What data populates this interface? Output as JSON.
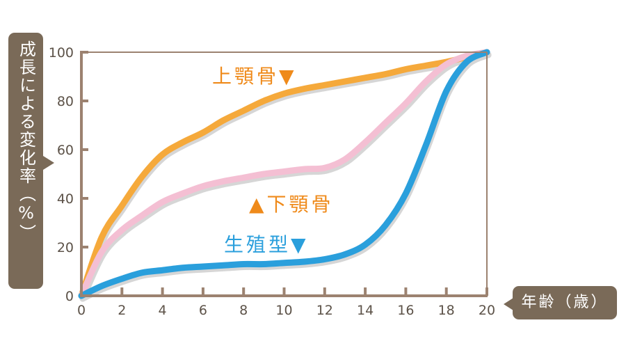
{
  "chart_data": {
    "type": "line",
    "title": "",
    "xlabel": "年齢（歳）",
    "ylabel": "成長による変化率（%）",
    "xlim": [
      0,
      20
    ],
    "ylim": [
      0,
      100
    ],
    "x_ticks": [
      0,
      2,
      4,
      6,
      8,
      10,
      12,
      14,
      16,
      18,
      20
    ],
    "y_ticks": [
      0,
      20,
      40,
      60,
      80,
      100
    ],
    "grid": false,
    "x": [
      0,
      1,
      2,
      3,
      4,
      5,
      6,
      7,
      8,
      9,
      10,
      11,
      12,
      13,
      14,
      15,
      16,
      17,
      18,
      19,
      20
    ],
    "series": [
      {
        "name": "上顎骨",
        "label": "上顎骨▼",
        "color": "#f5a93b",
        "values": [
          0,
          24,
          37,
          49,
          58,
          63,
          67,
          72,
          76,
          80,
          83,
          85,
          86.5,
          88,
          89.5,
          91,
          93,
          94.5,
          96,
          98,
          100
        ]
      },
      {
        "name": "下顎骨",
        "label": "▲下顎骨",
        "color": "#f4bfd3",
        "values": [
          0,
          18,
          27,
          33,
          38.5,
          42,
          45,
          47,
          48.5,
          50,
          51,
          52,
          52.5,
          56,
          63,
          71,
          79,
          88,
          95,
          98.5,
          100
        ]
      },
      {
        "name": "生殖型",
        "label": "生殖型▼",
        "color": "#2a9fdc",
        "values": [
          0,
          4,
          7,
          9.5,
          10.5,
          11.5,
          12,
          12.5,
          13,
          13,
          13.5,
          14,
          15,
          17,
          21,
          29,
          42,
          62,
          84,
          96,
          100
        ]
      }
    ],
    "legend_position": "inline labels near curves"
  },
  "axes": {
    "y_tick_labels": [
      "0",
      "20",
      "40",
      "60",
      "80",
      "100"
    ],
    "x_tick_labels": [
      "0",
      "2",
      "4",
      "6",
      "8",
      "10",
      "12",
      "14",
      "16",
      "18",
      "20"
    ],
    "y_title": "成長による変化率（%）",
    "x_title": "年齢（歳）"
  },
  "labels": {
    "maxilla": "上顎骨",
    "maxilla_marker": "▼",
    "mandible_marker": "▲",
    "mandible": "下顎骨",
    "genital": "生殖型",
    "genital_marker": "▼"
  },
  "colors": {
    "axis": "#9c8270",
    "label_box": "#7a6a58",
    "maxilla": "#f5a93b",
    "mandible": "#f4bfd3",
    "genital": "#2a9fdc",
    "maxilla_text": "#ef8a1a",
    "genital_text": "#2a9fdc",
    "shadow": "#d6d6d6"
  }
}
